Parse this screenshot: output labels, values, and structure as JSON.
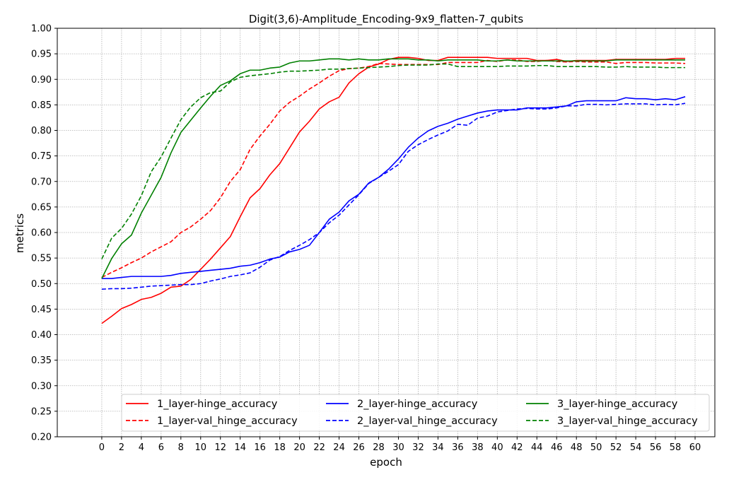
{
  "chart_data": {
    "type": "line",
    "title": "Digit(3,6)-Amplitude_Encoding-9x9_flatten-7_qubits",
    "xlabel": "epoch",
    "ylabel": "metrics",
    "xlim": [
      -4.5,
      62
    ],
    "ylim": [
      0.2,
      1.0
    ],
    "x_ticks": [
      0,
      2,
      4,
      6,
      8,
      10,
      12,
      14,
      16,
      18,
      20,
      22,
      24,
      26,
      28,
      30,
      32,
      34,
      36,
      38,
      40,
      42,
      44,
      46,
      48,
      50,
      52,
      54,
      56,
      58,
      60
    ],
    "y_ticks": [
      "0.20",
      "0.25",
      "0.30",
      "0.35",
      "0.40",
      "0.45",
      "0.50",
      "0.55",
      "0.60",
      "0.65",
      "0.70",
      "0.75",
      "0.80",
      "0.85",
      "0.90",
      "0.95",
      "1.00"
    ],
    "grid": true,
    "legend_position": "lower-right",
    "series": [
      {
        "name": "1_layer-hinge_accuracy",
        "color": "#ff0000",
        "style": "solid",
        "values": [
          0.422,
          0.436,
          0.451,
          0.459,
          0.469,
          0.473,
          0.481,
          0.493,
          0.495,
          0.508,
          0.528,
          0.548,
          0.57,
          0.592,
          0.631,
          0.668,
          0.686,
          0.713,
          0.735,
          0.766,
          0.797,
          0.818,
          0.842,
          0.856,
          0.865,
          0.893,
          0.911,
          0.924,
          0.93,
          0.939,
          0.943,
          0.943,
          0.941,
          0.937,
          0.937,
          0.943,
          0.943,
          0.943,
          0.943,
          0.943,
          0.941,
          0.941,
          0.941,
          0.941,
          0.937,
          0.937,
          0.939,
          0.935,
          0.937,
          0.937,
          0.937,
          0.937,
          0.939,
          0.939,
          0.939,
          0.939,
          0.939,
          0.939,
          0.941,
          0.941
        ]
      },
      {
        "name": "1_layer-val_hinge_accuracy",
        "color": "#ff0000",
        "style": "dashed",
        "values": [
          0.512,
          0.522,
          0.531,
          0.541,
          0.55,
          0.562,
          0.572,
          0.582,
          0.6,
          0.611,
          0.626,
          0.643,
          0.668,
          0.7,
          0.723,
          0.763,
          0.789,
          0.812,
          0.838,
          0.855,
          0.867,
          0.881,
          0.893,
          0.906,
          0.917,
          0.921,
          0.922,
          0.925,
          0.931,
          0.93,
          0.929,
          0.929,
          0.929,
          0.929,
          0.929,
          0.933,
          0.933,
          0.933,
          0.933,
          0.937,
          0.935,
          0.938,
          0.938,
          0.935,
          0.935,
          0.937,
          0.935,
          0.934,
          0.935,
          0.934,
          0.934,
          0.934,
          0.931,
          0.933,
          0.933,
          0.933,
          0.932,
          0.932,
          0.932,
          0.931
        ]
      },
      {
        "name": "2_layer-hinge_accuracy",
        "color": "#0000ff",
        "style": "solid",
        "values": [
          0.51,
          0.51,
          0.512,
          0.514,
          0.514,
          0.514,
          0.514,
          0.516,
          0.52,
          0.522,
          0.524,
          0.526,
          0.528,
          0.53,
          0.534,
          0.536,
          0.541,
          0.548,
          0.552,
          0.562,
          0.567,
          0.575,
          0.6,
          0.626,
          0.64,
          0.662,
          0.675,
          0.697,
          0.708,
          0.724,
          0.744,
          0.767,
          0.785,
          0.799,
          0.808,
          0.814,
          0.822,
          0.828,
          0.834,
          0.838,
          0.84,
          0.84,
          0.84,
          0.844,
          0.844,
          0.844,
          0.846,
          0.848,
          0.856,
          0.858,
          0.858,
          0.858,
          0.858,
          0.864,
          0.862,
          0.862,
          0.86,
          0.862,
          0.86,
          0.866
        ]
      },
      {
        "name": "2_layer-val_hinge_accuracy",
        "color": "#0000ff",
        "style": "dashed",
        "values": [
          0.489,
          0.49,
          0.49,
          0.491,
          0.493,
          0.495,
          0.496,
          0.497,
          0.498,
          0.498,
          0.5,
          0.505,
          0.509,
          0.514,
          0.517,
          0.521,
          0.532,
          0.546,
          0.553,
          0.565,
          0.575,
          0.586,
          0.6,
          0.619,
          0.634,
          0.654,
          0.674,
          0.696,
          0.708,
          0.72,
          0.733,
          0.759,
          0.772,
          0.782,
          0.791,
          0.799,
          0.812,
          0.81,
          0.824,
          0.828,
          0.836,
          0.839,
          0.842,
          0.843,
          0.842,
          0.842,
          0.844,
          0.848,
          0.848,
          0.851,
          0.851,
          0.85,
          0.851,
          0.852,
          0.852,
          0.852,
          0.85,
          0.851,
          0.85,
          0.853
        ]
      },
      {
        "name": "3_layer-hinge_accuracy",
        "color": "#008000",
        "style": "solid",
        "values": [
          0.51,
          0.549,
          0.578,
          0.595,
          0.638,
          0.673,
          0.708,
          0.756,
          0.796,
          0.82,
          0.844,
          0.867,
          0.888,
          0.897,
          0.911,
          0.918,
          0.918,
          0.922,
          0.924,
          0.932,
          0.936,
          0.936,
          0.938,
          0.94,
          0.94,
          0.938,
          0.94,
          0.938,
          0.938,
          0.94,
          0.94,
          0.94,
          0.938,
          0.938,
          0.936,
          0.938,
          0.938,
          0.938,
          0.938,
          0.936,
          0.936,
          0.938,
          0.936,
          0.936,
          0.936,
          0.936,
          0.936,
          0.936,
          0.936,
          0.936,
          0.936,
          0.936,
          0.938,
          0.938,
          0.938,
          0.938,
          0.938,
          0.938,
          0.938,
          0.938
        ]
      },
      {
        "name": "3_layer-val_hinge_accuracy",
        "color": "#008000",
        "style": "dashed",
        "values": [
          0.548,
          0.589,
          0.608,
          0.636,
          0.672,
          0.719,
          0.748,
          0.785,
          0.821,
          0.846,
          0.864,
          0.874,
          0.877,
          0.895,
          0.904,
          0.907,
          0.909,
          0.911,
          0.914,
          0.916,
          0.916,
          0.917,
          0.918,
          0.92,
          0.92,
          0.921,
          0.922,
          0.923,
          0.924,
          0.925,
          0.927,
          0.928,
          0.928,
          0.928,
          0.93,
          0.93,
          0.925,
          0.925,
          0.925,
          0.925,
          0.925,
          0.926,
          0.926,
          0.926,
          0.927,
          0.927,
          0.925,
          0.925,
          0.925,
          0.925,
          0.925,
          0.924,
          0.924,
          0.925,
          0.924,
          0.924,
          0.924,
          0.923,
          0.923,
          0.923
        ]
      }
    ]
  }
}
